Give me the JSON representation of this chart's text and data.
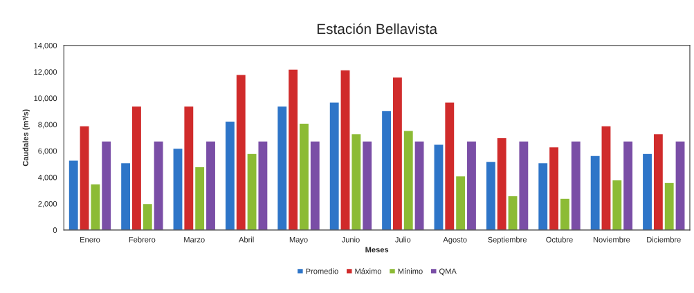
{
  "chart_data": {
    "type": "bar",
    "title": "Estación Bellavista",
    "xlabel": "Meses",
    "ylabel": "Caudales (m³/s)",
    "categories": [
      "Enero",
      "Febrero",
      "Marzo",
      "Abril",
      "Mayo",
      "Junio",
      "Julio",
      "Agosto",
      "Septiembre",
      "Octubre",
      "Noviembre",
      "Diciembre"
    ],
    "series": [
      {
        "name": "Promedio",
        "color": "#2e75c8",
        "values": [
          5300,
          5100,
          6200,
          8250,
          9400,
          9700,
          9050,
          6500,
          5200,
          5100,
          5650,
          5800
        ]
      },
      {
        "name": "Máximo",
        "color": "#d02b2b",
        "values": [
          7900,
          9400,
          9400,
          11800,
          12200,
          12150,
          11600,
          9700,
          7000,
          6300,
          7900,
          7300
        ]
      },
      {
        "name": "Mínimo",
        "color": "#8cbb35",
        "values": [
          3500,
          2000,
          4800,
          5800,
          8100,
          7300,
          7550,
          4100,
          2600,
          2400,
          3800,
          3600
        ]
      },
      {
        "name": "QMA",
        "color": "#7a4ea6",
        "values": [
          6750,
          6750,
          6750,
          6750,
          6750,
          6750,
          6750,
          6750,
          6750,
          6750,
          6750,
          6750
        ]
      }
    ],
    "ylim": [
      0,
      14000
    ],
    "yticks": [
      {
        "value": 0,
        "label": "0"
      },
      {
        "value": 2000,
        "label": "2,000"
      },
      {
        "value": 4000,
        "label": "4,000"
      },
      {
        "value": 6000,
        "label": "6,000"
      },
      {
        "value": 8000,
        "label": "8,000"
      },
      {
        "value": 10000,
        "label": "10,000"
      },
      {
        "value": 12000,
        "label": "12,000"
      },
      {
        "value": 14000,
        "label": "14,000"
      }
    ],
    "grid": false,
    "legend": "bottom"
  }
}
